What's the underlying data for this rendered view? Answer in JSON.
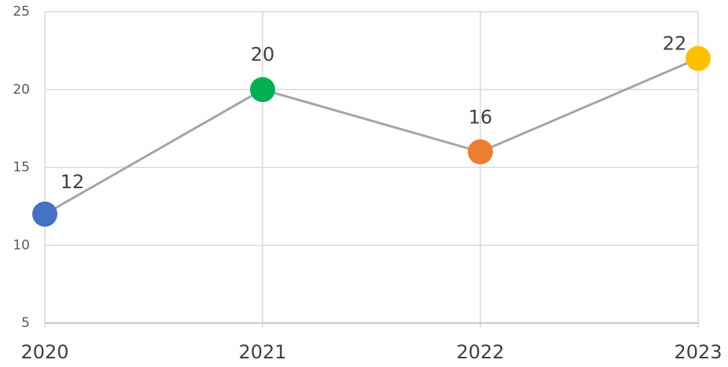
{
  "chart_data": {
    "type": "line",
    "categories": [
      "2020",
      "2021",
      "2022",
      "2023"
    ],
    "series": [
      {
        "color": "#a5a5a5",
        "values": [
          12,
          20,
          16,
          22
        ],
        "point_colors": [
          "#4472c4",
          "#00b050",
          "#ed7d31",
          "#ffc000"
        ]
      }
    ],
    "ylim": [
      5,
      25
    ],
    "yticks": [
      5,
      10,
      15,
      20,
      25
    ],
    "grid": true
  }
}
